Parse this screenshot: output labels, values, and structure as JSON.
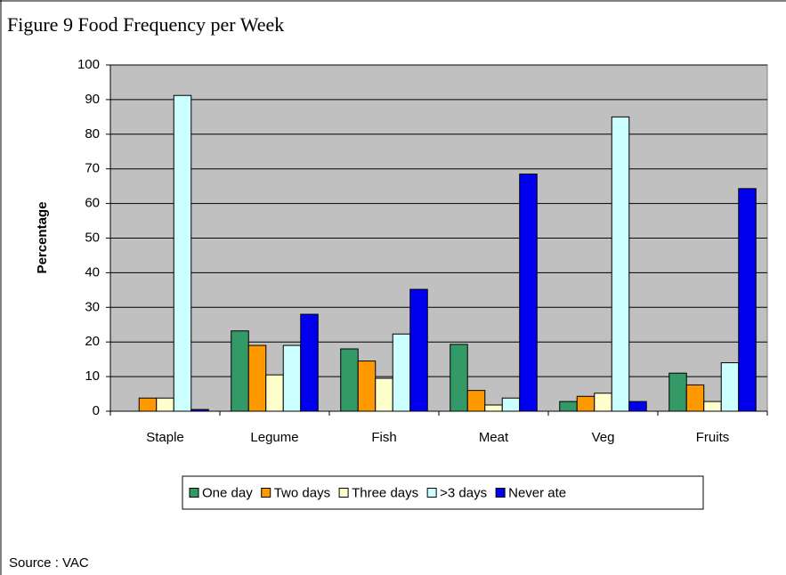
{
  "chart_data": {
    "type": "bar",
    "title": "Figure 9 Food Frequency per Week",
    "y_label": "Percentage",
    "categories": [
      "Staple",
      "Legume",
      "Fish",
      "Meat",
      "Veg",
      "Fruits"
    ],
    "series": [
      {
        "name": "One day",
        "color": "#339966",
        "values": [
          0,
          23.2,
          18,
          19.3,
          2.8,
          11
        ]
      },
      {
        "name": "Two days",
        "color": "#ff9900",
        "values": [
          3.8,
          19,
          14.5,
          6,
          4.3,
          7.6
        ]
      },
      {
        "name": "Three days",
        "color": "#ffffcc",
        "values": [
          3.8,
          10.5,
          9.5,
          1.8,
          5.2,
          2.8
        ]
      },
      {
        "name": ">3 days",
        "color": "#ccffff",
        "values": [
          91.2,
          19,
          22.3,
          3.8,
          85,
          14
        ]
      },
      {
        "name": "Never ate",
        "color": "#0000ee",
        "values": [
          0.5,
          28,
          35.2,
          68.5,
          2.8,
          64.3
        ]
      }
    ],
    "ylim": [
      0,
      100
    ],
    "yticks": [
      0,
      10,
      20,
      30,
      40,
      50,
      60,
      70,
      80,
      90,
      100
    ],
    "grid": true,
    "legend": "bottom",
    "source": "Source : VAC"
  }
}
